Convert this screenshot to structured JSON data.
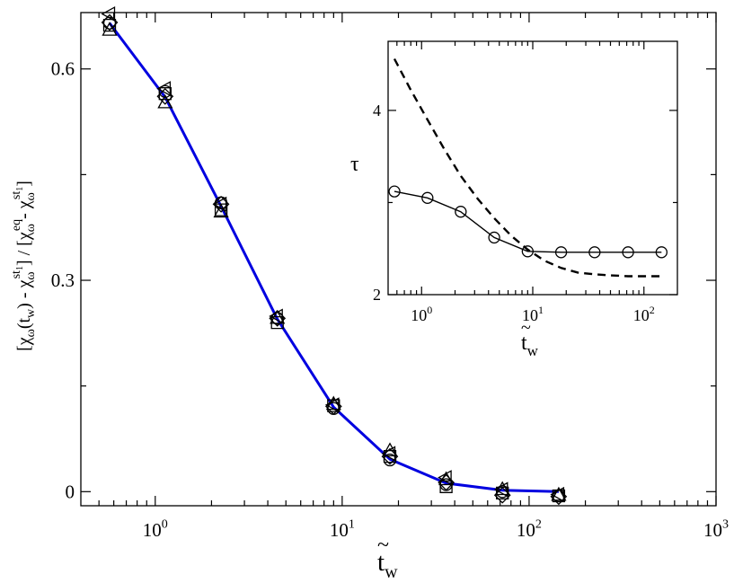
{
  "chart_data": [
    {
      "type": "scatter",
      "x_scale": "log",
      "xlim": [
        0.4,
        1000
      ],
      "ylim": [
        -0.02,
        0.68
      ],
      "x_ticks": [
        {
          "value": 1,
          "label": "10",
          "exp": "0"
        },
        {
          "value": 10,
          "label": "10",
          "exp": "1"
        },
        {
          "value": 100,
          "label": "10",
          "exp": "2"
        },
        {
          "value": 1000,
          "label": "10",
          "exp": "3"
        }
      ],
      "y_ticks": [
        {
          "value": 0,
          "label": "0"
        },
        {
          "value": 0.3,
          "label": "0.3"
        },
        {
          "value": 0.6,
          "label": "0.6"
        }
      ],
      "xlabel": {
        "base": "t",
        "accent": "~",
        "sub": "w"
      },
      "ylabel": {
        "p1": "[χ",
        "p1_sub": "ω",
        "p2": "(t",
        "p2_sub": "w",
        "p3": ") - χ",
        "p3_sub": "ω",
        "p3_sup": "st",
        "p3_supsub": "1",
        "p4": "] / [χ",
        "p4_sub": "ω",
        "p4_sup": "eq",
        "p5": "- χ",
        "p5_sub": "ω",
        "p5_sup": "st",
        "p5_supsub": "1",
        "p6": "]"
      },
      "line_color": "#0000e0",
      "line": {
        "x": [
          0.57,
          1.13,
          2.25,
          4.5,
          9.0,
          18.0,
          36.0,
          72.0,
          144.0
        ],
        "y": [
          0.665,
          0.56,
          0.405,
          0.245,
          0.12,
          0.046,
          0.012,
          0.002,
          0.0
        ]
      },
      "series": [
        {
          "marker": "circle",
          "x": [
            0.57,
            1.13,
            2.25,
            4.5,
            9.0,
            18.0,
            36.0,
            72.0,
            144.0
          ],
          "y": [
            0.665,
            0.568,
            0.41,
            0.246,
            0.118,
            0.045,
            0.01,
            0.0,
            -0.006
          ]
        },
        {
          "marker": "square",
          "x": [
            0.57,
            1.13,
            2.25,
            4.5,
            9.0,
            18.0,
            36.0,
            72.0,
            144.0
          ],
          "y": [
            0.662,
            0.565,
            0.4,
            0.24,
            0.122,
            0.05,
            0.007,
            -0.002,
            -0.006
          ]
        },
        {
          "marker": "diamond",
          "x": [
            0.57,
            1.13,
            2.25,
            4.5,
            9.0,
            18.0,
            36.0,
            72.0,
            144.0
          ],
          "y": [
            0.666,
            0.561,
            0.408,
            0.246,
            0.121,
            0.05,
            0.013,
            -0.005,
            -0.007
          ]
        },
        {
          "marker": "triangle-up",
          "x": [
            0.57,
            1.13,
            2.25,
            4.5,
            9.0,
            18.0,
            36.0,
            72.0,
            144.0
          ],
          "y": [
            0.655,
            0.552,
            0.397,
            0.246,
            0.124,
            0.058,
            0.017,
            0.003,
            -0.005
          ]
        },
        {
          "marker": "triangle-left",
          "x": [
            0.57,
            1.13,
            2.25,
            4.5,
            9.0,
            18.0,
            36.0,
            72.0,
            144.0
          ],
          "y": [
            0.678,
            0.572,
            0.408,
            0.249,
            0.123,
            0.054,
            0.02,
            0.003,
            -0.004
          ]
        }
      ]
    },
    {
      "type": "line",
      "x_scale": "log",
      "xlim": [
        0.5,
        200
      ],
      "ylim": [
        2.0,
        4.75
      ],
      "x_ticks": [
        {
          "value": 1,
          "label": "10",
          "exp": "0"
        },
        {
          "value": 10,
          "label": "10",
          "exp": "1"
        },
        {
          "value": 100,
          "label": "10",
          "exp": "2"
        }
      ],
      "y_ticks": [
        {
          "value": 2,
          "label": "2"
        },
        {
          "value": 4,
          "label": "4"
        }
      ],
      "xlabel": {
        "base": "t",
        "accent": "~",
        "sub": "w"
      },
      "ylabel": {
        "text": "τ"
      },
      "series": [
        {
          "style": "solid-circles",
          "x": [
            0.57,
            1.13,
            2.25,
            4.5,
            9.0,
            18.0,
            36.0,
            72.0,
            144.0
          ],
          "y": [
            3.12,
            3.05,
            2.9,
            2.62,
            2.47,
            2.46,
            2.46,
            2.46,
            2.46
          ]
        },
        {
          "style": "dashed",
          "x": [
            0.57,
            0.8,
            1.13,
            1.6,
            2.25,
            3.2,
            4.5,
            6.4,
            9.0,
            12.7,
            18.0,
            25.4,
            36.0,
            50.0,
            72.0,
            100.0,
            144.0
          ],
          "y": [
            4.56,
            4.22,
            3.9,
            3.58,
            3.29,
            3.04,
            2.83,
            2.64,
            2.49,
            2.37,
            2.29,
            2.24,
            2.22,
            2.21,
            2.2,
            2.2,
            2.2
          ]
        }
      ]
    }
  ]
}
